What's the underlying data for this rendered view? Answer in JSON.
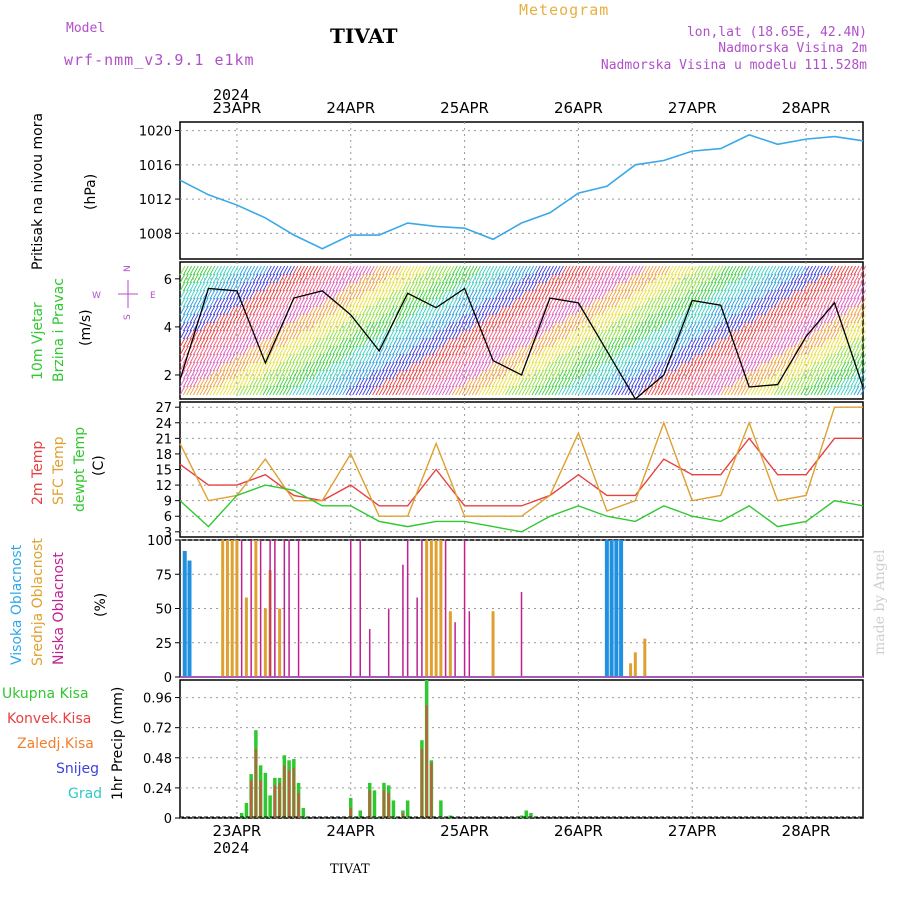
{
  "header": {
    "model_label": "Model",
    "model_name": "wrf-nmm_v3.9.1 e1km",
    "title": "TIVAT",
    "meteogram": "Meteogram",
    "lonlat": "lon,lat (18.65E, 42.4N)",
    "altitude": "Nadmorska Visina 2m",
    "model_altitude": "Nadmorska Visina u modelu 111.528m",
    "footer_station": "TIVAT",
    "watermark": "made by Angel",
    "year": "2024"
  },
  "colors": {
    "pressure": "#3aa8e8",
    "temp2m": "#e84040",
    "sfc": "#e0a030",
    "dewpt": "#30c830",
    "high_cloud": "#2090e0",
    "mid_cloud": "#e0a030",
    "low_cloud": "#c02090",
    "total_rain": "#30c830",
    "conv_rain": "#e84040",
    "frozen_rain": "#f08030",
    "snow": "#4040e0",
    "hail": "#30c8c8",
    "compass": "#b050c8"
  },
  "dates": [
    "23APR",
    "24APR",
    "25APR",
    "26APR",
    "27APR",
    "28APR"
  ],
  "panels": {
    "pressure": {
      "labels": [
        "Pritisak na nivou mora",
        "(hPa)"
      ],
      "ticks": [
        "1020",
        "1016",
        "1012",
        "1008"
      ]
    },
    "wind": {
      "labels": [
        "10m Vjetar",
        "Brzina i Pravac",
        "(m/s)"
      ],
      "ticks": [
        "6",
        "4",
        "2"
      ],
      "compass": {
        "n": "N",
        "s": "S",
        "w": "W",
        "e": "E"
      }
    },
    "temp": {
      "labels": [
        "2m Temp",
        "SFC Temp",
        "dewpt Temp",
        "(C)"
      ],
      "ticks": [
        "27",
        "24",
        "21",
        "18",
        "15",
        "12",
        "9",
        "6",
        "3"
      ]
    },
    "cloud": {
      "labels": [
        "Visoka Oblacnost",
        "Srednja Oblacnost",
        "Niska Oblacnost",
        "(%)"
      ],
      "ticks": [
        "100",
        "75",
        "50",
        "25",
        "0"
      ]
    },
    "precip": {
      "labels": [
        "1hr Precip (mm)"
      ],
      "ticks": [
        "0.96",
        "0.72",
        "0.48",
        "0.24",
        "0"
      ],
      "legend": [
        "Ukupna Kisa",
        "Konvek.Kisa",
        "Zaledj.Kisa",
        "Snijeg",
        "Grad"
      ]
    }
  },
  "chart_data": [
    {
      "type": "line",
      "xlabel": "",
      "ylabel": "(hPa)",
      "x_start": "2024-04-22 12:00",
      "x_end": "2024-04-28 12:00",
      "ylim": [
        1005,
        1021
      ],
      "series": [
        {
          "name": "Pritisak na nivou mora",
          "x_hours": [
            0,
            6,
            12,
            18,
            24,
            30,
            36,
            42,
            48,
            54,
            60,
            66,
            72,
            78,
            84,
            90,
            96,
            102,
            108,
            114,
            120,
            126,
            132,
            138,
            144
          ],
          "values": [
            1014.2,
            1012.5,
            1011.3,
            1009.8,
            1007.8,
            1006.2,
            1007.8,
            1007.8,
            1009.2,
            1008.8,
            1008.6,
            1007.3,
            1009.2,
            1010.4,
            1012.7,
            1013.5,
            1016.0,
            1016.5,
            1017.6,
            1017.9,
            1019.5,
            1018.4,
            1019.0,
            1019.3,
            1018.8
          ]
        }
      ]
    },
    {
      "type": "line",
      "ylabel": "(m/s)",
      "ylim": [
        1,
        6.7
      ],
      "series": [
        {
          "name": "10m Vjetar",
          "x_hours": [
            0,
            6,
            12,
            18,
            24,
            30,
            36,
            42,
            48,
            54,
            60,
            66,
            72,
            78,
            84,
            90,
            96,
            102,
            108,
            114,
            120,
            126,
            132,
            138,
            144
          ],
          "values": [
            1.8,
            5.6,
            5.5,
            2.5,
            5.2,
            5.5,
            4.5,
            3.0,
            5.4,
            4.8,
            5.6,
            2.6,
            2.0,
            5.2,
            5.0,
            3.0,
            1.0,
            2.0,
            5.1,
            4.9,
            1.5,
            1.6,
            3.6,
            5.0,
            1.5
          ]
        }
      ]
    },
    {
      "type": "line",
      "ylabel": "(C)",
      "ylim": [
        2,
        28
      ],
      "series": [
        {
          "name": "2m Temp",
          "x_hours": [
            0,
            6,
            12,
            18,
            24,
            30,
            36,
            42,
            48,
            54,
            60,
            66,
            72,
            78,
            84,
            90,
            96,
            102,
            108,
            114,
            120,
            126,
            132,
            138,
            144
          ],
          "values": [
            16,
            12,
            12,
            14,
            10,
            9,
            12,
            8,
            8,
            15,
            8,
            8,
            8,
            10,
            14,
            10,
            10,
            17,
            14,
            14,
            21,
            14,
            14,
            21,
            21
          ]
        },
        {
          "name": "SFC Temp",
          "x_hours": [
            0,
            6,
            12,
            18,
            24,
            30,
            36,
            42,
            48,
            54,
            60,
            66,
            72,
            78,
            84,
            90,
            96,
            102,
            108,
            114,
            120,
            126,
            132,
            138,
            144
          ],
          "values": [
            20,
            9,
            10,
            17,
            9,
            9,
            18,
            6,
            6,
            20,
            6,
            6,
            6,
            10,
            22,
            7,
            9,
            24,
            9,
            10,
            24,
            9,
            10,
            27,
            27
          ]
        },
        {
          "name": "dewpt Temp",
          "x_hours": [
            0,
            6,
            12,
            18,
            24,
            30,
            36,
            42,
            48,
            54,
            60,
            66,
            72,
            78,
            84,
            90,
            96,
            102,
            108,
            114,
            120,
            126,
            132,
            138,
            144
          ],
          "values": [
            9,
            4,
            10,
            12,
            11,
            8,
            8,
            5,
            4,
            5,
            5,
            4,
            3,
            6,
            8,
            6,
            5,
            8,
            6,
            5,
            8,
            4,
            5,
            9,
            8
          ]
        }
      ]
    },
    {
      "type": "bar",
      "ylabel": "(%)",
      "ylim": [
        0,
        100
      ],
      "series": [
        {
          "name": "Visoka Oblacnost",
          "x_hours": [
            1,
            2,
            90,
            91,
            92,
            93
          ],
          "values": [
            92,
            85,
            100,
            100,
            100,
            100
          ]
        },
        {
          "name": "Srednja Oblacnost",
          "x_hours": [
            9,
            10,
            11,
            12,
            14,
            16,
            18,
            19,
            21,
            52,
            53,
            54,
            55,
            57,
            66,
            95,
            96,
            98
          ],
          "values": [
            100,
            100,
            100,
            100,
            58,
            100,
            50,
            78,
            50,
            100,
            100,
            100,
            100,
            48,
            48,
            10,
            18,
            28
          ]
        },
        {
          "name": "Niska Oblacnost",
          "x_hours": [
            13,
            15,
            17,
            19,
            20,
            22,
            23,
            25,
            36,
            38,
            40,
            44,
            47,
            48,
            50,
            51,
            56,
            58,
            60,
            61,
            72
          ],
          "values": [
            100,
            100,
            100,
            100,
            100,
            100,
            100,
            100,
            100,
            100,
            35,
            50,
            82,
            100,
            58,
            100,
            100,
            40,
            100,
            48,
            62
          ]
        }
      ]
    },
    {
      "type": "bar",
      "ylabel": "1hr Precip (mm)",
      "ylim": [
        0,
        1.1
      ],
      "series": [
        {
          "name": "Ukupna Kisa",
          "x_hours": [
            13,
            14,
            15,
            16,
            17,
            18,
            19,
            20,
            21,
            22,
            23,
            24,
            25,
            26,
            36,
            38,
            40,
            41,
            43,
            44,
            45,
            47,
            48,
            51,
            52,
            53,
            55,
            57,
            72,
            73,
            74
          ],
          "values": [
            0.04,
            0.12,
            0.35,
            0.7,
            0.42,
            0.36,
            0.18,
            0.32,
            0.32,
            0.5,
            0.46,
            0.47,
            0.28,
            0.08,
            0.16,
            0.06,
            0.28,
            0.22,
            0.28,
            0.26,
            0.14,
            0.06,
            0.14,
            0.62,
            1.1,
            0.46,
            0.14,
            0.02,
            0.02,
            0.06,
            0.04
          ]
        },
        {
          "name": "Konvek.Kisa",
          "x_hours": [
            15,
            16,
            17,
            20,
            21,
            22,
            23,
            24,
            25,
            36,
            40,
            43,
            44,
            47,
            51,
            52,
            53
          ],
          "values": [
            0.3,
            0.55,
            0.3,
            0.26,
            0.28,
            0.42,
            0.38,
            0.4,
            0.2,
            0.08,
            0.22,
            0.22,
            0.2,
            0.04,
            0.55,
            0.9,
            0.44
          ]
        }
      ]
    }
  ]
}
